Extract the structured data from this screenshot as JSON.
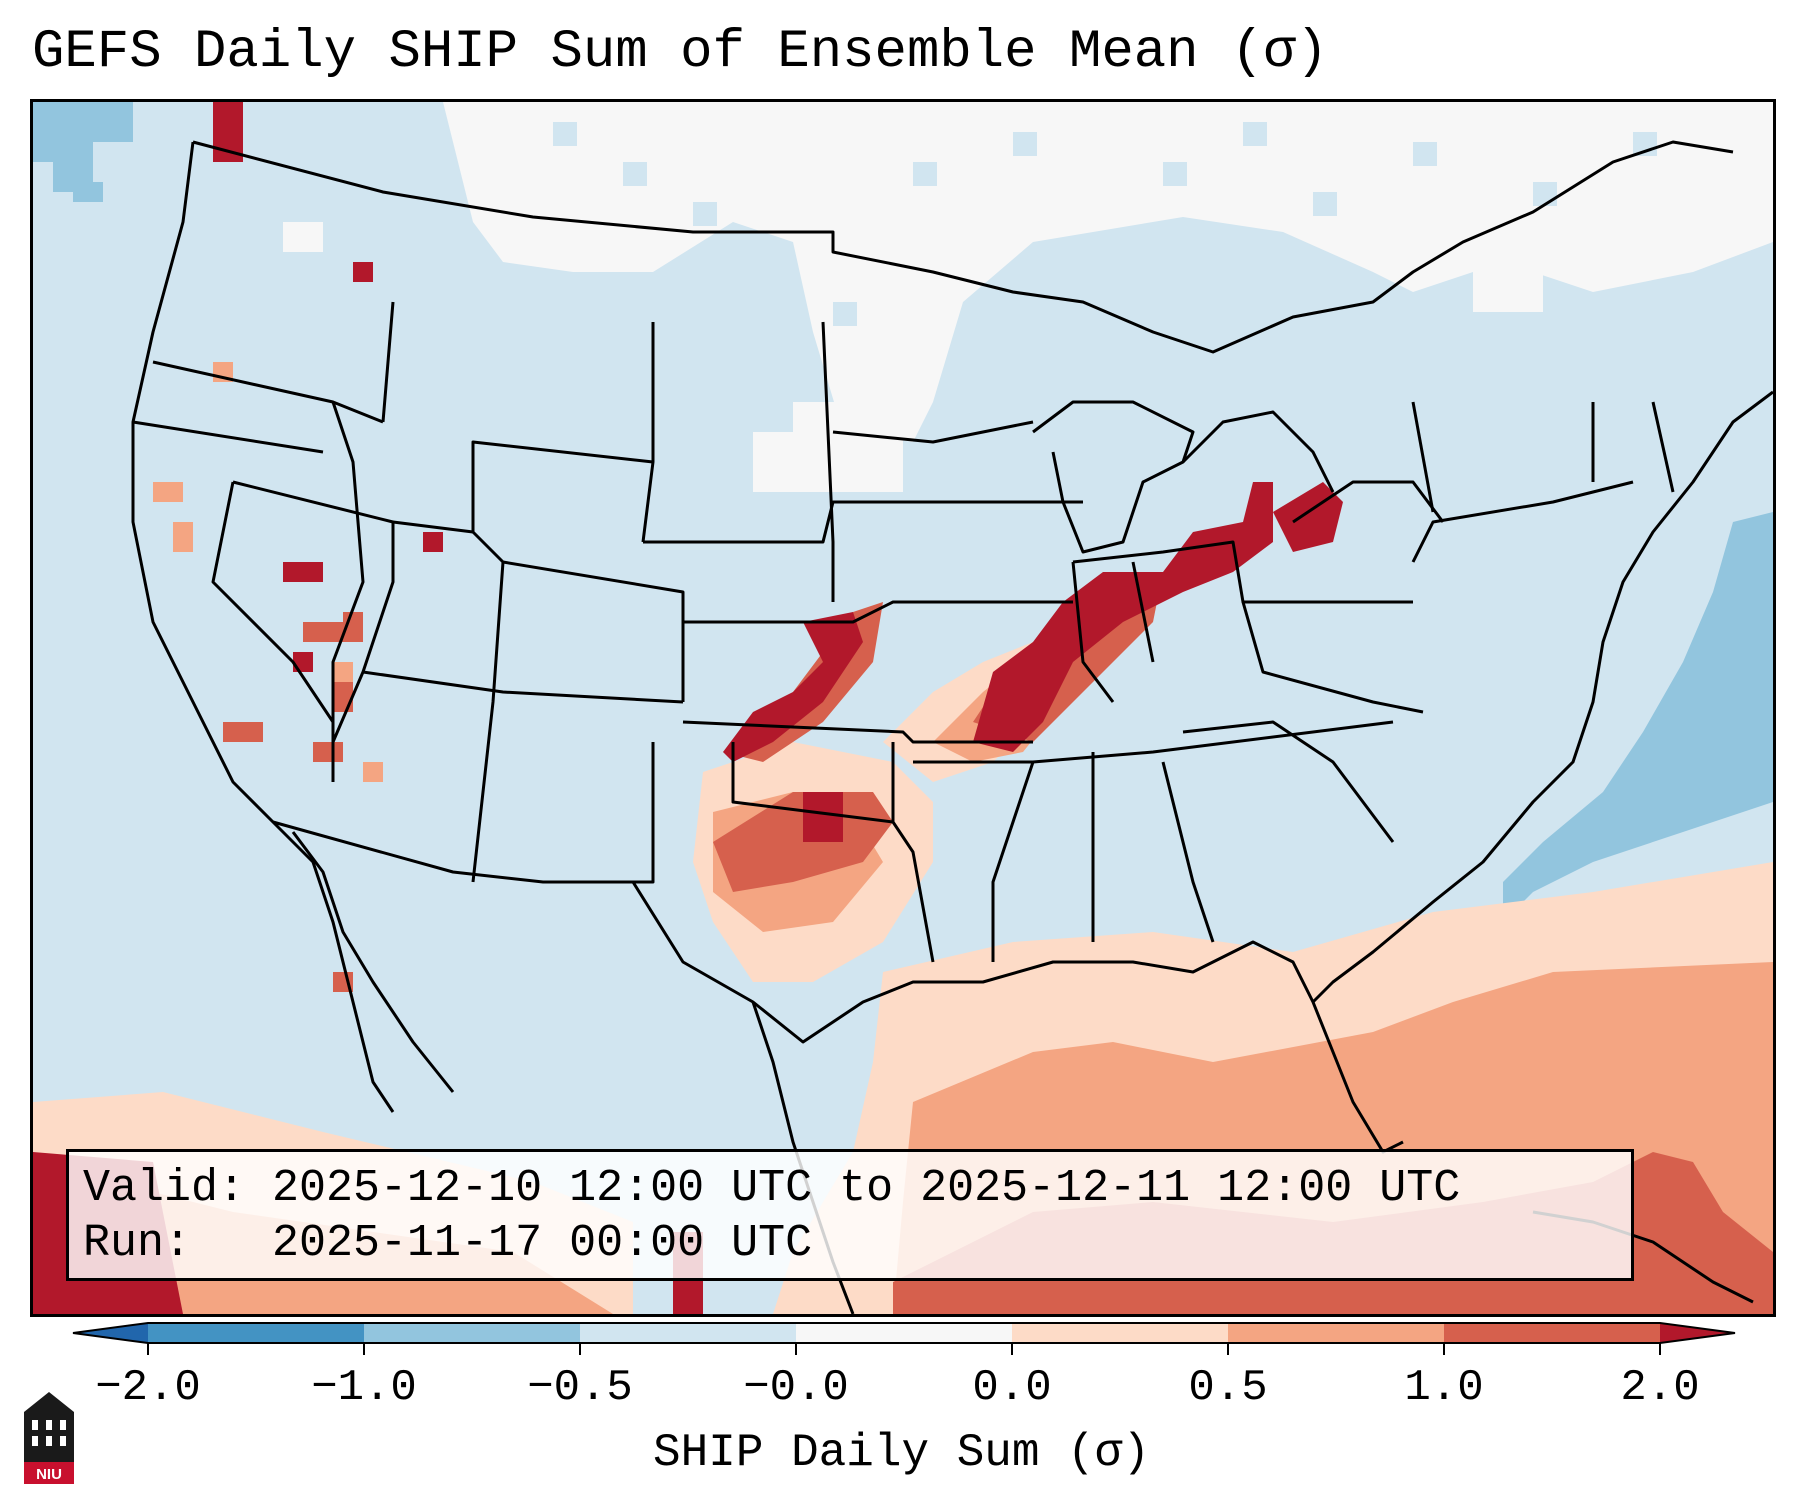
{
  "title": "GEFS Daily SHIP Sum of Ensemble Mean (σ)",
  "info": {
    "valid_line": "Valid: 2025-12-10 12:00 UTC to 2025-12-11 12:00 UTC",
    "run_line": "Run:   2025-11-17 00:00 UTC"
  },
  "colorbar": {
    "label": "SHIP Daily Sum (σ)",
    "ticks": [
      "−2.0",
      "−1.0",
      "−0.5",
      "−0.0",
      "0.0",
      "0.5",
      "1.0",
      "2.0"
    ],
    "bins": [
      {
        "color": "#4393c3"
      },
      {
        "color": "#92c5de"
      },
      {
        "color": "#d1e5f0"
      },
      {
        "color": "#f7f7f7"
      },
      {
        "color": "#fddbc7"
      },
      {
        "color": "#f4a582"
      },
      {
        "color": "#d6604d"
      }
    ],
    "under_color": "#2166ac",
    "over_color": "#b2182b",
    "extend": "both"
  },
  "logo": {
    "text": "NIU",
    "color": "#c8102e"
  },
  "map": {
    "projection": "Lambert conformal, CONUS",
    "background_color": "#d1e5f0",
    "regions": [
      {
        "name": "northern plains / canada",
        "level": "near zero",
        "color": "#f7f7f7"
      },
      {
        "name": "western atlantic",
        "level": "-1.0 to -0.5",
        "color": "#92c5de"
      },
      {
        "name": "gulf of mexico / caribbean",
        "level": "0.5 to 1.0",
        "color": "#f4a582"
      },
      {
        "name": "ohio valley band",
        "level": "> 2.0",
        "color": "#b2182b"
      },
      {
        "name": "kansas / oklahoma band",
        "level": "1.0 to 2.0",
        "color": "#d6604d"
      }
    ]
  }
}
